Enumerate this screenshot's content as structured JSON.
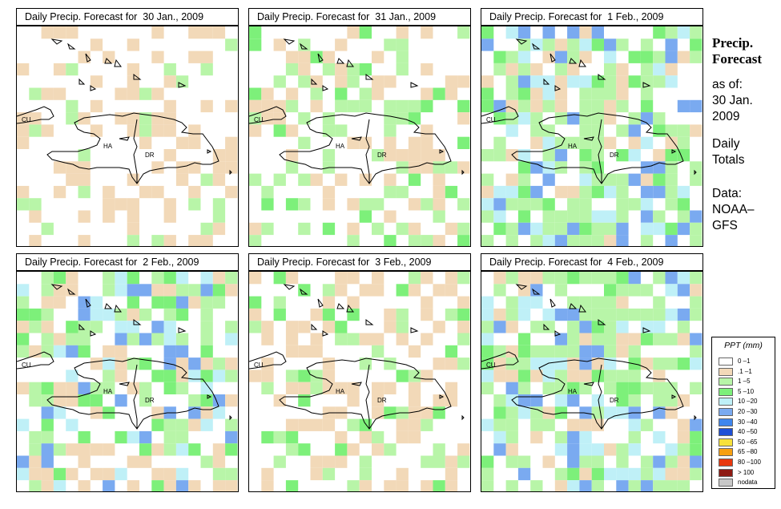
{
  "colors": {
    "tan": "#f2d9b8",
    "green_light": "#b8f5a8",
    "green": "#7df07a",
    "cyan": "#bff0f7",
    "blue": "#7aaaf0"
  },
  "panels": [
    {
      "title": "Daily Precip. Forecast for  30 Jan., 2009"
    },
    {
      "title": "Daily Precip. Forecast for  31 Jan., 2009"
    },
    {
      "title": "Daily Precip. Forecast for  1 Feb., 2009"
    },
    {
      "title": "Daily Precip. Forecast for  2 Feb., 2009"
    },
    {
      "title": "Daily Precip. Forecast for  3 Feb., 2009"
    },
    {
      "title": "Daily Precip. Forecast for  4 Feb., 2009"
    }
  ],
  "map_labels": {
    "cuba": "CU",
    "haiti": "HA",
    "dominican_republic": "DR"
  },
  "sidebar": {
    "title_line1": "Precip.",
    "title_line2": "Forecast",
    "asof": "as of:",
    "date_line1": "30 Jan.",
    "date_line2": "2009",
    "daily_line1": "Daily",
    "daily_line2": "Totals",
    "data_line1": "Data:",
    "data_line2": "NOAA–",
    "data_line3": "GFS"
  },
  "legend": {
    "title": "PPT (mm)",
    "items": [
      {
        "label": "0 –1",
        "color": "#ffffff"
      },
      {
        "label": ".1 –1",
        "color": "#f2d9b8"
      },
      {
        "label": "1 –5",
        "color": "#b8f5a8"
      },
      {
        "label": "5 –10",
        "color": "#7df07a"
      },
      {
        "label": "10 –20",
        "color": "#bff0f7"
      },
      {
        "label": "20 –30",
        "color": "#7aaaf0"
      },
      {
        "label": "30 –40",
        "color": "#3f86ee"
      },
      {
        "label": "40 –50",
        "color": "#1d4fd6"
      },
      {
        "label": "50 –65",
        "color": "#f7e13a"
      },
      {
        "label": "65 –80",
        "color": "#f7a012"
      },
      {
        "label": "80 –100",
        "color": "#e8380e"
      },
      {
        "label": "> 100",
        "color": "#8e1a12"
      },
      {
        "label": "nodata",
        "color": "#c8c8c8"
      }
    ]
  }
}
